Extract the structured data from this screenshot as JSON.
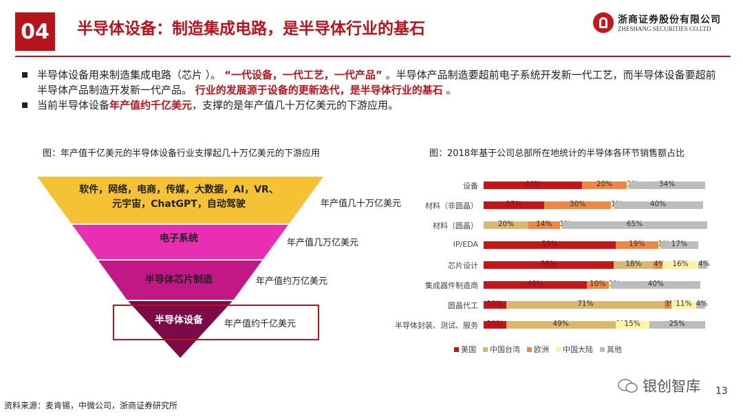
{
  "header": {
    "badge": "04",
    "title": "半导体设备：制造集成电路，是半导体行业的基石",
    "logo_cn": "浙商证券股份有限公司",
    "logo_en": "ZHESHANG SECURITIES CO.LTD"
  },
  "bullets": {
    "b1_a": "半导体设备用来制造集成电路（芯片 ）。",
    "b1_b": "“一代设备，一代工艺，一代产品”",
    "b1_c": "。半导体产品制造要超前电子系统开发新一代工艺，而半导体设备要超前半导体产品制造开发新一代产品。",
    "b1_d": "行业的发展源于设备的更新迭代，是半导体行业的基石",
    "b1_e": "。",
    "b2_a": "当前半导体设备",
    "b2_b": "年产值约千亿美元",
    "b2_c": "，支撑的是年产值几十万亿美元的下游应用。"
  },
  "left_figure": {
    "caption": "图：年产值千亿美元的半导体设备行业支撑起几十万亿美元的下游应用",
    "levels": [
      {
        "label_line1": "软件，网络，电商，传媒，大数据，AI，VR、",
        "label_line2": "元宇宙，ChatGPT，自动驾驶",
        "value": "年产值几十万亿美元",
        "color": "#f5c236"
      },
      {
        "label_line1": "电子系统",
        "label_line2": "",
        "value": "年产值几万亿美元",
        "color": "#e82fb4"
      },
      {
        "label_line1": "半导体芯片制造",
        "label_line2": "",
        "value": "年产值约万亿美元",
        "color": "#c21786"
      },
      {
        "label_line1": "半导体设备",
        "label_line2": "",
        "value": "年产值约千亿美元",
        "color": "#7c0a48"
      }
    ],
    "highlight_color": "#b6141b"
  },
  "right_figure": {
    "caption": "图：2018年基于公司总部所在地统计的半导体各环节销售额占比"
  },
  "chart_data": {
    "type": "bar",
    "orientation": "horizontal",
    "stacked": true,
    "categories": [
      "设备",
      "材料（非圆晶）",
      "材料（圆晶）",
      "IP/EDA",
      "芯片设计",
      "集成器件制造商",
      "圆晶代工",
      "半导体封装、测试、服务"
    ],
    "series": [
      {
        "name": "美国",
        "color": "#c0171b",
        "values": [
          44,
          27,
          0,
          59,
          58,
          46,
          10,
          10
        ],
        "labels": [
          "44%",
          "27%",
          "",
          "59%",
          "58%",
          "46%",
          "10%",
          "10%"
        ]
      },
      {
        "name": "中国台湾",
        "color": "#d8b86f",
        "values": [
          0,
          0,
          20,
          0,
          18,
          0,
          71,
          49
        ],
        "labels": [
          "",
          "",
          "20%",
          "",
          "18%",
          "",
          "71%",
          "49%"
        ]
      },
      {
        "name": "欧洲",
        "color": "#ec8845",
        "values": [
          20,
          30,
          14,
          19,
          4,
          10,
          3,
          0
        ],
        "labels": [
          "20%",
          "30%",
          "14%",
          "19%",
          "4%",
          "10%",
          "3%",
          "0%"
        ]
      },
      {
        "name": "中国大陆",
        "color": "#fcf3a5",
        "values": [
          1,
          1,
          1,
          1,
          16,
          1,
          11,
          15
        ],
        "labels": [
          "1%",
          "1%",
          "1%",
          "1%",
          "16%",
          "1%",
          "11%",
          "15%"
        ]
      },
      {
        "name": "其他",
        "color": "#bcbcbc",
        "values": [
          34,
          40,
          65,
          17,
          4,
          40,
          4,
          25
        ],
        "labels": [
          "34%",
          "40%",
          "65%",
          "17%",
          "4%",
          "40%",
          "4%",
          "25%"
        ]
      }
    ],
    "xlim": [
      0,
      100
    ]
  },
  "footer": {
    "source": "资料来源：麦肯锡，中微公司，浙商证券研究所",
    "watermark": "银创智库",
    "page": "13"
  }
}
